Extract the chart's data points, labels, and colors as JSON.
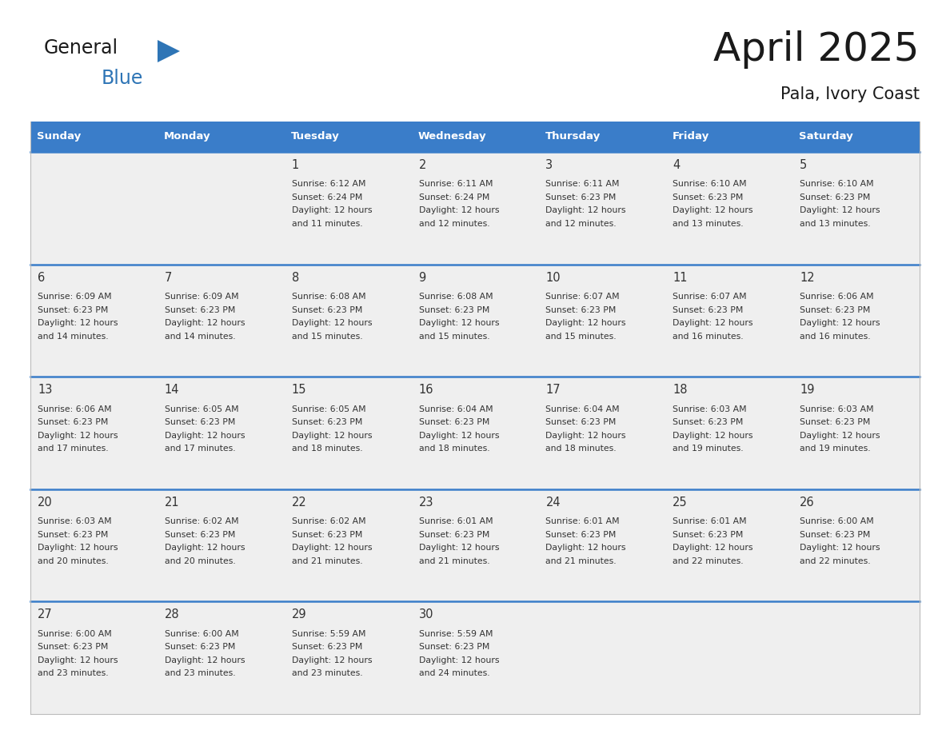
{
  "title": "April 2025",
  "subtitle": "Pala, Ivory Coast",
  "days_of_week": [
    "Sunday",
    "Monday",
    "Tuesday",
    "Wednesday",
    "Thursday",
    "Friday",
    "Saturday"
  ],
  "header_bg": "#3A7DC9",
  "header_text_color": "#FFFFFF",
  "cell_bg": "#EFEFEF",
  "separator_color": "#3A7DC9",
  "text_color": "#333333",
  "title_color": "#1a1a1a",
  "logo_general_color": "#1a1a1a",
  "logo_blue_color": "#2E75B6",
  "weeks": [
    [
      {
        "day": null,
        "info": null
      },
      {
        "day": null,
        "info": null
      },
      {
        "day": 1,
        "info": {
          "sunrise": "6:12 AM",
          "sunset": "6:24 PM",
          "daylight": "12 hours",
          "daylight2": "and 11 minutes."
        }
      },
      {
        "day": 2,
        "info": {
          "sunrise": "6:11 AM",
          "sunset": "6:24 PM",
          "daylight": "12 hours",
          "daylight2": "and 12 minutes."
        }
      },
      {
        "day": 3,
        "info": {
          "sunrise": "6:11 AM",
          "sunset": "6:23 PM",
          "daylight": "12 hours",
          "daylight2": "and 12 minutes."
        }
      },
      {
        "day": 4,
        "info": {
          "sunrise": "6:10 AM",
          "sunset": "6:23 PM",
          "daylight": "12 hours",
          "daylight2": "and 13 minutes."
        }
      },
      {
        "day": 5,
        "info": {
          "sunrise": "6:10 AM",
          "sunset": "6:23 PM",
          "daylight": "12 hours",
          "daylight2": "and 13 minutes."
        }
      }
    ],
    [
      {
        "day": 6,
        "info": {
          "sunrise": "6:09 AM",
          "sunset": "6:23 PM",
          "daylight": "12 hours",
          "daylight2": "and 14 minutes."
        }
      },
      {
        "day": 7,
        "info": {
          "sunrise": "6:09 AM",
          "sunset": "6:23 PM",
          "daylight": "12 hours",
          "daylight2": "and 14 minutes."
        }
      },
      {
        "day": 8,
        "info": {
          "sunrise": "6:08 AM",
          "sunset": "6:23 PM",
          "daylight": "12 hours",
          "daylight2": "and 15 minutes."
        }
      },
      {
        "day": 9,
        "info": {
          "sunrise": "6:08 AM",
          "sunset": "6:23 PM",
          "daylight": "12 hours",
          "daylight2": "and 15 minutes."
        }
      },
      {
        "day": 10,
        "info": {
          "sunrise": "6:07 AM",
          "sunset": "6:23 PM",
          "daylight": "12 hours",
          "daylight2": "and 15 minutes."
        }
      },
      {
        "day": 11,
        "info": {
          "sunrise": "6:07 AM",
          "sunset": "6:23 PM",
          "daylight": "12 hours",
          "daylight2": "and 16 minutes."
        }
      },
      {
        "day": 12,
        "info": {
          "sunrise": "6:06 AM",
          "sunset": "6:23 PM",
          "daylight": "12 hours",
          "daylight2": "and 16 minutes."
        }
      }
    ],
    [
      {
        "day": 13,
        "info": {
          "sunrise": "6:06 AM",
          "sunset": "6:23 PM",
          "daylight": "12 hours",
          "daylight2": "and 17 minutes."
        }
      },
      {
        "day": 14,
        "info": {
          "sunrise": "6:05 AM",
          "sunset": "6:23 PM",
          "daylight": "12 hours",
          "daylight2": "and 17 minutes."
        }
      },
      {
        "day": 15,
        "info": {
          "sunrise": "6:05 AM",
          "sunset": "6:23 PM",
          "daylight": "12 hours",
          "daylight2": "and 18 minutes."
        }
      },
      {
        "day": 16,
        "info": {
          "sunrise": "6:04 AM",
          "sunset": "6:23 PM",
          "daylight": "12 hours",
          "daylight2": "and 18 minutes."
        }
      },
      {
        "day": 17,
        "info": {
          "sunrise": "6:04 AM",
          "sunset": "6:23 PM",
          "daylight": "12 hours",
          "daylight2": "and 18 minutes."
        }
      },
      {
        "day": 18,
        "info": {
          "sunrise": "6:03 AM",
          "sunset": "6:23 PM",
          "daylight": "12 hours",
          "daylight2": "and 19 minutes."
        }
      },
      {
        "day": 19,
        "info": {
          "sunrise": "6:03 AM",
          "sunset": "6:23 PM",
          "daylight": "12 hours",
          "daylight2": "and 19 minutes."
        }
      }
    ],
    [
      {
        "day": 20,
        "info": {
          "sunrise": "6:03 AM",
          "sunset": "6:23 PM",
          "daylight": "12 hours",
          "daylight2": "and 20 minutes."
        }
      },
      {
        "day": 21,
        "info": {
          "sunrise": "6:02 AM",
          "sunset": "6:23 PM",
          "daylight": "12 hours",
          "daylight2": "and 20 minutes."
        }
      },
      {
        "day": 22,
        "info": {
          "sunrise": "6:02 AM",
          "sunset": "6:23 PM",
          "daylight": "12 hours",
          "daylight2": "and 21 minutes."
        }
      },
      {
        "day": 23,
        "info": {
          "sunrise": "6:01 AM",
          "sunset": "6:23 PM",
          "daylight": "12 hours",
          "daylight2": "and 21 minutes."
        }
      },
      {
        "day": 24,
        "info": {
          "sunrise": "6:01 AM",
          "sunset": "6:23 PM",
          "daylight": "12 hours",
          "daylight2": "and 21 minutes."
        }
      },
      {
        "day": 25,
        "info": {
          "sunrise": "6:01 AM",
          "sunset": "6:23 PM",
          "daylight": "12 hours",
          "daylight2": "and 22 minutes."
        }
      },
      {
        "day": 26,
        "info": {
          "sunrise": "6:00 AM",
          "sunset": "6:23 PM",
          "daylight": "12 hours",
          "daylight2": "and 22 minutes."
        }
      }
    ],
    [
      {
        "day": 27,
        "info": {
          "sunrise": "6:00 AM",
          "sunset": "6:23 PM",
          "daylight": "12 hours",
          "daylight2": "and 23 minutes."
        }
      },
      {
        "day": 28,
        "info": {
          "sunrise": "6:00 AM",
          "sunset": "6:23 PM",
          "daylight": "12 hours",
          "daylight2": "and 23 minutes."
        }
      },
      {
        "day": 29,
        "info": {
          "sunrise": "5:59 AM",
          "sunset": "6:23 PM",
          "daylight": "12 hours",
          "daylight2": "and 23 minutes."
        }
      },
      {
        "day": 30,
        "info": {
          "sunrise": "5:59 AM",
          "sunset": "6:23 PM",
          "daylight": "12 hours",
          "daylight2": "and 24 minutes."
        }
      },
      {
        "day": null,
        "info": null
      },
      {
        "day": null,
        "info": null
      },
      {
        "day": null,
        "info": null
      }
    ]
  ]
}
